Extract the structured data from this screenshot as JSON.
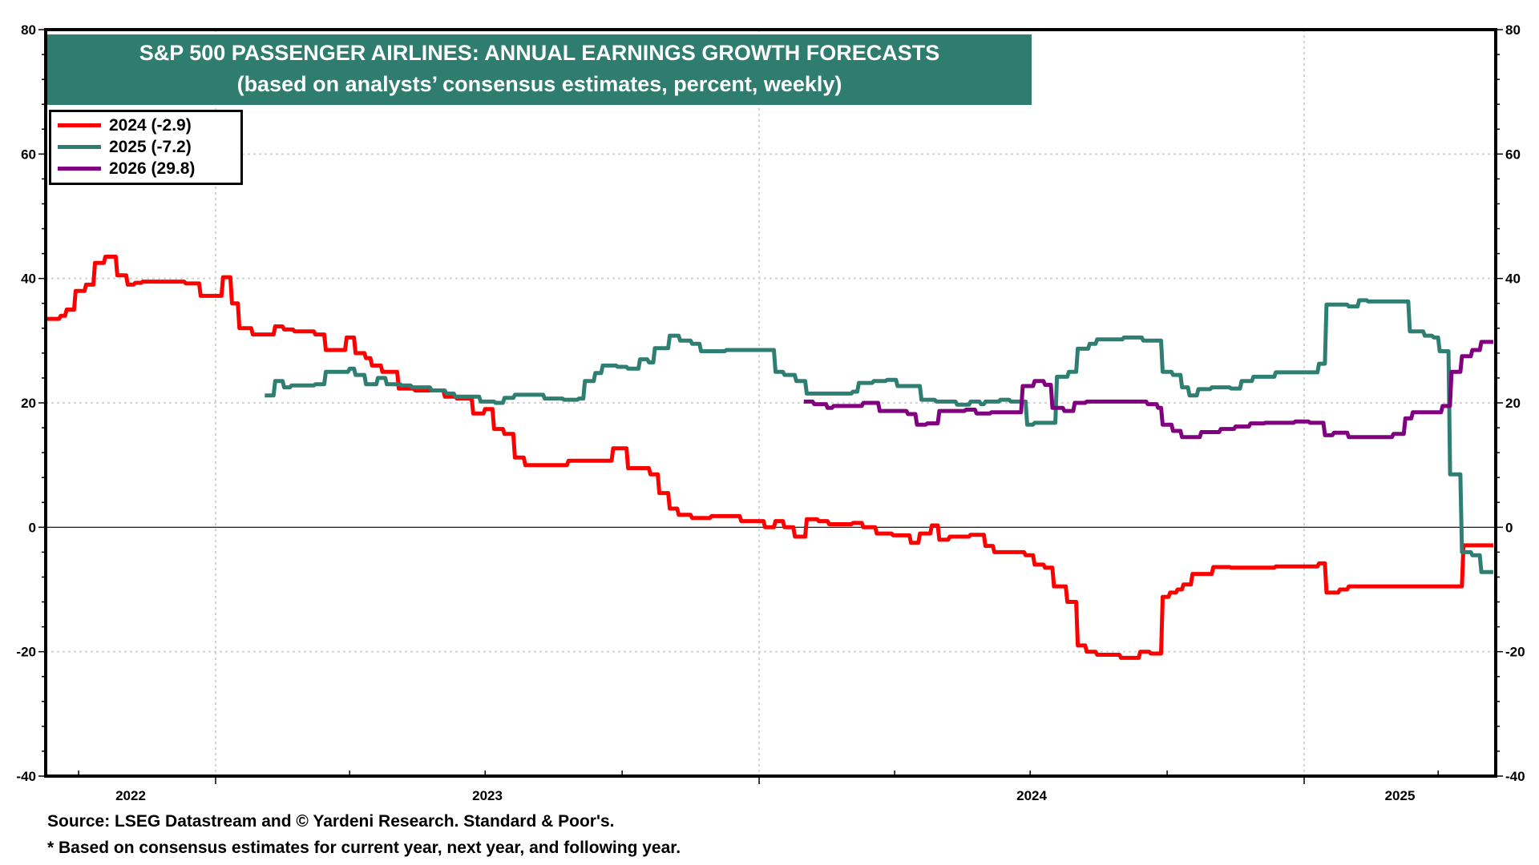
{
  "chart_data": {
    "type": "line",
    "title": "S&P 500 PASSENGER AIRLINES: ANNUAL EARNINGS GROWTH FORECASTS",
    "subtitle": "(based on analysts’ consensus estimates, percent, weekly)",
    "xlabel": "",
    "ylabel": "",
    "ylim": [
      -40,
      80
    ],
    "xlim": [
      "2022-09-07",
      "2025-05-09"
    ],
    "y_ticks": [
      -40,
      -20,
      0,
      20,
      40,
      60,
      80
    ],
    "y_ticks_right": [
      -40,
      -20,
      0,
      20,
      40,
      60,
      80
    ],
    "x_tick_labels": [
      "2022",
      "2023",
      "2024",
      "2025"
    ],
    "grid": true,
    "legend_position": "top-left",
    "series": [
      {
        "name": "2024 (-2.9)",
        "color": "#ff0000",
        "points": [
          [
            "2022-09-08",
            33.5
          ],
          [
            "2022-09-19",
            34
          ],
          [
            "2022-09-23",
            35
          ],
          [
            "2022-09-29",
            38
          ],
          [
            "2022-10-06",
            39
          ],
          [
            "2022-10-12",
            42.5
          ],
          [
            "2022-10-19",
            43.5
          ],
          [
            "2022-10-27",
            40.5
          ],
          [
            "2022-11-03",
            39
          ],
          [
            "2022-11-08",
            39.3
          ],
          [
            "2022-11-13",
            39.5
          ],
          [
            "2022-12-12",
            39.2
          ],
          [
            "2022-12-22",
            37.2
          ],
          [
            "2023-01-06",
            40.2
          ],
          [
            "2023-01-12",
            36
          ],
          [
            "2023-01-17",
            32
          ],
          [
            "2023-01-26",
            31
          ],
          [
            "2023-02-10",
            32.3
          ],
          [
            "2023-02-16",
            31.8
          ],
          [
            "2023-02-23",
            31.5
          ],
          [
            "2023-03-09",
            31
          ],
          [
            "2023-03-16",
            28.5
          ],
          [
            "2023-03-30",
            30.5
          ],
          [
            "2023-04-05",
            28
          ],
          [
            "2023-04-12",
            27.2
          ],
          [
            "2023-04-16",
            26
          ],
          [
            "2023-04-23",
            25
          ],
          [
            "2023-05-04",
            22.3
          ],
          [
            "2023-05-15",
            22
          ],
          [
            "2023-06-04",
            21
          ],
          [
            "2023-06-12",
            20.7
          ],
          [
            "2023-06-23",
            18.3
          ],
          [
            "2023-07-01",
            19
          ],
          [
            "2023-07-07",
            15.8
          ],
          [
            "2023-07-14",
            15
          ],
          [
            "2023-07-21",
            11.2
          ],
          [
            "2023-07-28",
            10
          ],
          [
            "2023-08-26",
            10.7
          ],
          [
            "2023-09-25",
            12.7
          ],
          [
            "2023-10-05",
            9.5
          ],
          [
            "2023-10-20",
            8.5
          ],
          [
            "2023-10-26",
            5.5
          ],
          [
            "2023-11-02",
            3
          ],
          [
            "2023-11-08",
            2
          ],
          [
            "2023-11-17",
            1.5
          ],
          [
            "2023-11-30",
            1.8
          ],
          [
            "2023-12-20",
            1
          ],
          [
            "2024-01-05",
            0
          ],
          [
            "2024-01-12",
            1
          ],
          [
            "2024-01-18",
            0
          ],
          [
            "2024-01-25",
            -1.5
          ],
          [
            "2024-02-02",
            1.3
          ],
          [
            "2024-02-10",
            1
          ],
          [
            "2024-02-17",
            0.5
          ],
          [
            "2024-03-04",
            0.7
          ],
          [
            "2024-03-11",
            0
          ],
          [
            "2024-03-20",
            -1
          ],
          [
            "2024-03-31",
            -1.3
          ],
          [
            "2024-04-12",
            -2.5
          ],
          [
            "2024-04-18",
            -1
          ],
          [
            "2024-04-26",
            0.3
          ],
          [
            "2024-05-01",
            -2
          ],
          [
            "2024-05-08",
            -1.5
          ],
          [
            "2024-05-22",
            -1.2
          ],
          [
            "2024-06-01",
            -3
          ],
          [
            "2024-06-07",
            -4
          ],
          [
            "2024-06-28",
            -4.5
          ],
          [
            "2024-07-04",
            -6
          ],
          [
            "2024-07-11",
            -6.5
          ],
          [
            "2024-07-17",
            -9.5
          ],
          [
            "2024-07-26",
            -12
          ],
          [
            "2024-08-02",
            -19
          ],
          [
            "2024-08-08",
            -20
          ],
          [
            "2024-08-15",
            -20.5
          ],
          [
            "2024-08-31",
            -21
          ],
          [
            "2024-09-13",
            -20
          ],
          [
            "2024-09-20",
            -20.3
          ],
          [
            "2024-09-28",
            -11.2
          ],
          [
            "2024-10-03",
            -10.5
          ],
          [
            "2024-10-08",
            -10
          ],
          [
            "2024-10-12",
            -9.2
          ],
          [
            "2024-10-18",
            -7.5
          ],
          [
            "2024-11-01",
            -6.4
          ],
          [
            "2024-11-13",
            -6.5
          ],
          [
            "2024-12-13",
            -6.3
          ],
          [
            "2025-01-11",
            -5.8
          ],
          [
            "2025-01-16",
            -10.5
          ],
          [
            "2025-01-25",
            -10
          ],
          [
            "2025-01-31",
            -9.5
          ],
          [
            "2025-04-18",
            -2.9
          ],
          [
            "2025-05-08",
            -2.9
          ]
        ]
      },
      {
        "name": "2025 (-7.2)",
        "color": "#2e7f72",
        "points": [
          [
            "2023-02-03",
            21.2
          ],
          [
            "2023-02-10",
            23.5
          ],
          [
            "2023-02-16",
            22.5
          ],
          [
            "2023-02-21",
            22.8
          ],
          [
            "2023-03-09",
            23
          ],
          [
            "2023-03-16",
            25
          ],
          [
            "2023-04-01",
            25.5
          ],
          [
            "2023-04-05",
            24.5
          ],
          [
            "2023-04-12",
            23
          ],
          [
            "2023-04-20",
            24
          ],
          [
            "2023-04-26",
            23
          ],
          [
            "2023-05-06",
            22.8
          ],
          [
            "2023-05-13",
            22.5
          ],
          [
            "2023-05-26",
            22
          ],
          [
            "2023-06-05",
            21.5
          ],
          [
            "2023-06-11",
            21
          ],
          [
            "2023-06-28",
            20.2
          ],
          [
            "2023-07-08",
            20
          ],
          [
            "2023-07-14",
            20.8
          ],
          [
            "2023-07-21",
            21.3
          ],
          [
            "2023-08-10",
            20.7
          ],
          [
            "2023-08-23",
            20.5
          ],
          [
            "2023-09-02",
            20.7
          ],
          [
            "2023-09-06",
            23.5
          ],
          [
            "2023-09-13",
            24.8
          ],
          [
            "2023-09-18",
            26
          ],
          [
            "2023-09-28",
            25.8
          ],
          [
            "2023-10-05",
            25.5
          ],
          [
            "2023-10-13",
            27
          ],
          [
            "2023-10-19",
            26.5
          ],
          [
            "2023-10-23",
            28.8
          ],
          [
            "2023-11-02",
            30.8
          ],
          [
            "2023-11-09",
            30
          ],
          [
            "2023-11-17",
            29.5
          ],
          [
            "2023-11-23",
            28.3
          ],
          [
            "2023-12-10",
            28.5
          ],
          [
            "2024-01-12",
            25
          ],
          [
            "2024-01-18",
            24.5
          ],
          [
            "2024-01-26",
            23.5
          ],
          [
            "2024-02-02",
            21.5
          ],
          [
            "2024-03-04",
            21.8
          ],
          [
            "2024-03-08",
            23.2
          ],
          [
            "2024-03-18",
            23.5
          ],
          [
            "2024-03-27",
            23.7
          ],
          [
            "2024-04-03",
            22.7
          ],
          [
            "2024-04-19",
            20.5
          ],
          [
            "2024-04-29",
            20.2
          ],
          [
            "2024-05-13",
            19.7
          ],
          [
            "2024-05-22",
            20.2
          ],
          [
            "2024-05-29",
            19.8
          ],
          [
            "2024-06-01",
            20.2
          ],
          [
            "2024-06-11",
            20.5
          ],
          [
            "2024-06-18",
            20.2
          ],
          [
            "2024-06-29",
            16.5
          ],
          [
            "2024-07-04",
            16.8
          ],
          [
            "2024-07-19",
            24.2
          ],
          [
            "2024-07-27",
            25
          ],
          [
            "2024-08-02",
            28.7
          ],
          [
            "2024-08-10",
            29.5
          ],
          [
            "2024-08-15",
            30.2
          ],
          [
            "2024-09-02",
            30.5
          ],
          [
            "2024-09-15",
            30
          ],
          [
            "2024-09-28",
            25
          ],
          [
            "2024-10-05",
            24.5
          ],
          [
            "2024-10-11",
            22.5
          ],
          [
            "2024-10-16",
            21.2
          ],
          [
            "2024-10-22",
            22.2
          ],
          [
            "2024-10-31",
            22.5
          ],
          [
            "2024-11-13",
            22.3
          ],
          [
            "2024-11-20",
            23.5
          ],
          [
            "2024-11-28",
            24.2
          ],
          [
            "2024-12-13",
            24.9
          ],
          [
            "2025-01-11",
            26.3
          ],
          [
            "2025-01-16",
            35.8
          ],
          [
            "2025-01-31",
            35.5
          ],
          [
            "2025-02-07",
            36.5
          ],
          [
            "2025-02-13",
            36.3
          ],
          [
            "2025-03-13",
            31.5
          ],
          [
            "2025-03-23",
            30.8
          ],
          [
            "2025-03-29",
            30.5
          ],
          [
            "2025-04-02",
            28.3
          ],
          [
            "2025-04-09",
            8.5
          ],
          [
            "2025-04-17",
            -4
          ],
          [
            "2025-04-24",
            -4.5
          ],
          [
            "2025-04-30",
            -7.2
          ],
          [
            "2025-05-08",
            -7.2
          ]
        ]
      },
      {
        "name": "2026 (29.8)",
        "color": "#800080",
        "points": [
          [
            "2024-01-31",
            20.2
          ],
          [
            "2024-02-07",
            19.8
          ],
          [
            "2024-02-16",
            19.2
          ],
          [
            "2024-02-20",
            19.5
          ],
          [
            "2024-03-11",
            20
          ],
          [
            "2024-03-22",
            18.7
          ],
          [
            "2024-04-10",
            18.2
          ],
          [
            "2024-04-16",
            16.5
          ],
          [
            "2024-04-23",
            16.7
          ],
          [
            "2024-05-01",
            18.7
          ],
          [
            "2024-05-19",
            18.9
          ],
          [
            "2024-05-26",
            18.3
          ],
          [
            "2024-06-05",
            18.5
          ],
          [
            "2024-06-26",
            22.7
          ],
          [
            "2024-07-04",
            23.5
          ],
          [
            "2024-07-11",
            22.9
          ],
          [
            "2024-07-16",
            19.2
          ],
          [
            "2024-07-24",
            18.7
          ],
          [
            "2024-07-31",
            20
          ],
          [
            "2024-08-08",
            20.2
          ],
          [
            "2024-09-18",
            19.8
          ],
          [
            "2024-09-25",
            19.2
          ],
          [
            "2024-09-28",
            16.5
          ],
          [
            "2024-10-05",
            15.5
          ],
          [
            "2024-10-11",
            14.5
          ],
          [
            "2024-10-24",
            15.3
          ],
          [
            "2024-11-06",
            15.8
          ],
          [
            "2024-11-16",
            16.2
          ],
          [
            "2024-11-26",
            16.7
          ],
          [
            "2024-12-06",
            16.8
          ],
          [
            "2024-12-26",
            17
          ],
          [
            "2025-01-05",
            16.8
          ],
          [
            "2025-01-15",
            14.8
          ],
          [
            "2025-01-21",
            15.2
          ],
          [
            "2025-01-31",
            14.5
          ],
          [
            "2025-03-02",
            15
          ],
          [
            "2025-03-10",
            17.5
          ],
          [
            "2025-03-15",
            18.5
          ],
          [
            "2025-04-04",
            19.5
          ],
          [
            "2025-04-10",
            25
          ],
          [
            "2025-04-17",
            27.5
          ],
          [
            "2025-04-24",
            28.5
          ],
          [
            "2025-04-30",
            29.8
          ],
          [
            "2025-05-08",
            29.8
          ]
        ]
      }
    ]
  },
  "footer": {
    "source": "Source: LSEG Datastream and © Yardeni Research. Standard & Poor's.",
    "note": "* Based on consensus estimates for current year, next year, and following year."
  },
  "colors": {
    "title_background": "#2e7d6f",
    "zero_line": "#000000",
    "grid": "#d3d3d3"
  }
}
